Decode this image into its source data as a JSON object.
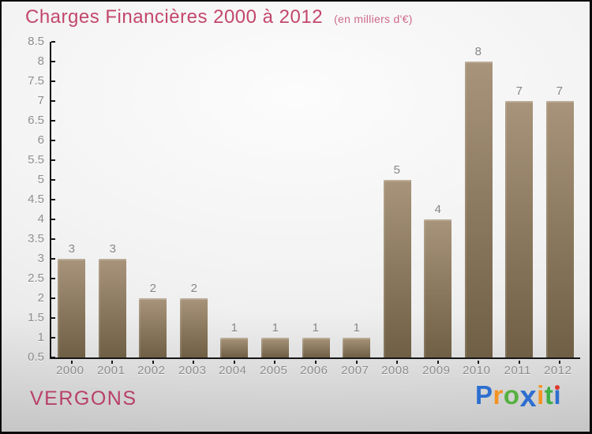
{
  "header": {
    "title": "Charges Financières 2000 à 2012",
    "subtitle": "(en milliers d'€)"
  },
  "footer": {
    "company": "VERGONS",
    "logo": {
      "name": "Proxiti",
      "letters": [
        {
          "ch": "P",
          "color": "#2e6fd0"
        },
        {
          "ch": "r",
          "color": "#f39322"
        },
        {
          "ch": "o",
          "color": "#56b13f"
        },
        {
          "ch": "x",
          "color": "#2e6fd0",
          "big": true
        },
        {
          "ch": "i",
          "color": "#f39322"
        },
        {
          "ch": "t",
          "color": "#3faf46"
        },
        {
          "ch": "i",
          "color": "#2e6fd0",
          "dot_color": "#e0392e"
        }
      ]
    }
  },
  "colors": {
    "title_text": "#c3476c",
    "subtitle_text": "#cd6a8c",
    "company_text": "#b84067",
    "axis_line": "#161616",
    "axis_label_text": "#8d8d8d",
    "bar_top": "#a8947a",
    "bar_bottom": "#6f5f45",
    "background_edge": "#d7d7d7"
  },
  "chart_data": {
    "type": "bar",
    "title": "Charges Financières 2000 à 2012",
    "subtitle": "(en milliers d'€)",
    "xlabel": "",
    "ylabel": "",
    "categories": [
      "2000",
      "2001",
      "2002",
      "2003",
      "2004",
      "2005",
      "2006",
      "2007",
      "2008",
      "2009",
      "2010",
      "2011",
      "2012"
    ],
    "values": [
      3,
      3,
      2,
      2,
      1,
      1,
      1,
      1,
      5,
      4,
      8,
      7,
      7
    ],
    "ylim": [
      0.5,
      8.5
    ],
    "ytick_step": 0.5,
    "grid": false,
    "legend": false,
    "data_labels": true
  }
}
